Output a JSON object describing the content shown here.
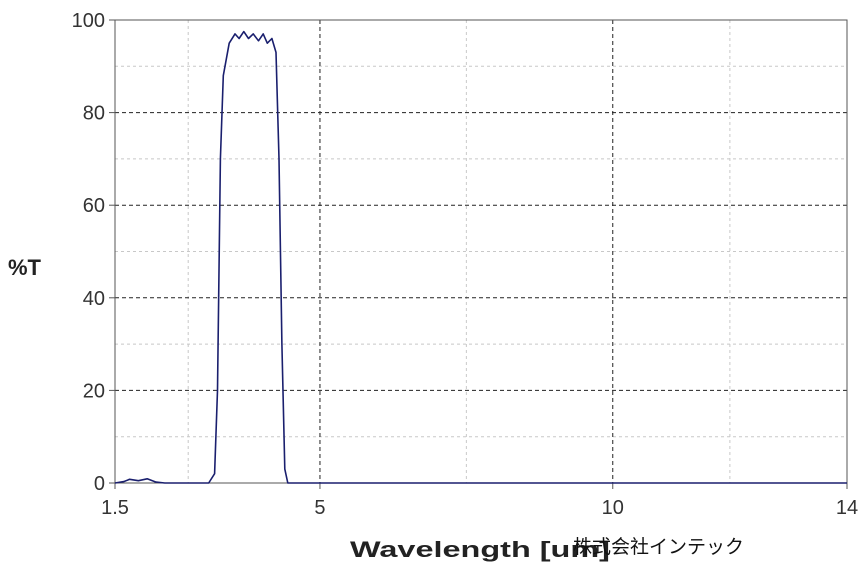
{
  "chart_data": {
    "type": "line",
    "title": "",
    "xlabel": "Wavelength [um]",
    "ylabel": "%T",
    "xlim": [
      1.5,
      14
    ],
    "ylim": [
      0,
      100
    ],
    "x_ticks": [
      1.5,
      5,
      10,
      14
    ],
    "x_tick_labels": [
      "1.5",
      "5",
      "10",
      "14"
    ],
    "y_ticks": [
      0,
      20,
      40,
      60,
      80,
      100
    ],
    "y_tick_labels": [
      "0",
      "20",
      "40",
      "60",
      "80",
      "100"
    ],
    "grid": true,
    "colors": {
      "line": "#1a1f6e",
      "grid_major": "#222222",
      "grid_minor": "#c8c8c8",
      "frame": "#555555"
    },
    "series": [
      {
        "values": [
          [
            1.5,
            0
          ],
          [
            1.65,
            0.3
          ],
          [
            1.75,
            0.8
          ],
          [
            1.9,
            0.5
          ],
          [
            2.05,
            0.9
          ],
          [
            2.2,
            0.2
          ],
          [
            2.35,
            0
          ],
          [
            3.1,
            0
          ],
          [
            3.2,
            2
          ],
          [
            3.25,
            20
          ],
          [
            3.3,
            70
          ],
          [
            3.35,
            88
          ],
          [
            3.45,
            95
          ],
          [
            3.55,
            97
          ],
          [
            3.62,
            96
          ],
          [
            3.7,
            97.5
          ],
          [
            3.78,
            96
          ],
          [
            3.86,
            97
          ],
          [
            3.95,
            95.5
          ],
          [
            4.03,
            97
          ],
          [
            4.1,
            95
          ],
          [
            4.18,
            96
          ],
          [
            4.25,
            93
          ],
          [
            4.3,
            70
          ],
          [
            4.35,
            30
          ],
          [
            4.4,
            3
          ],
          [
            4.45,
            0
          ],
          [
            14,
            0
          ]
        ]
      }
    ]
  },
  "watermark": "株式会社インテック"
}
